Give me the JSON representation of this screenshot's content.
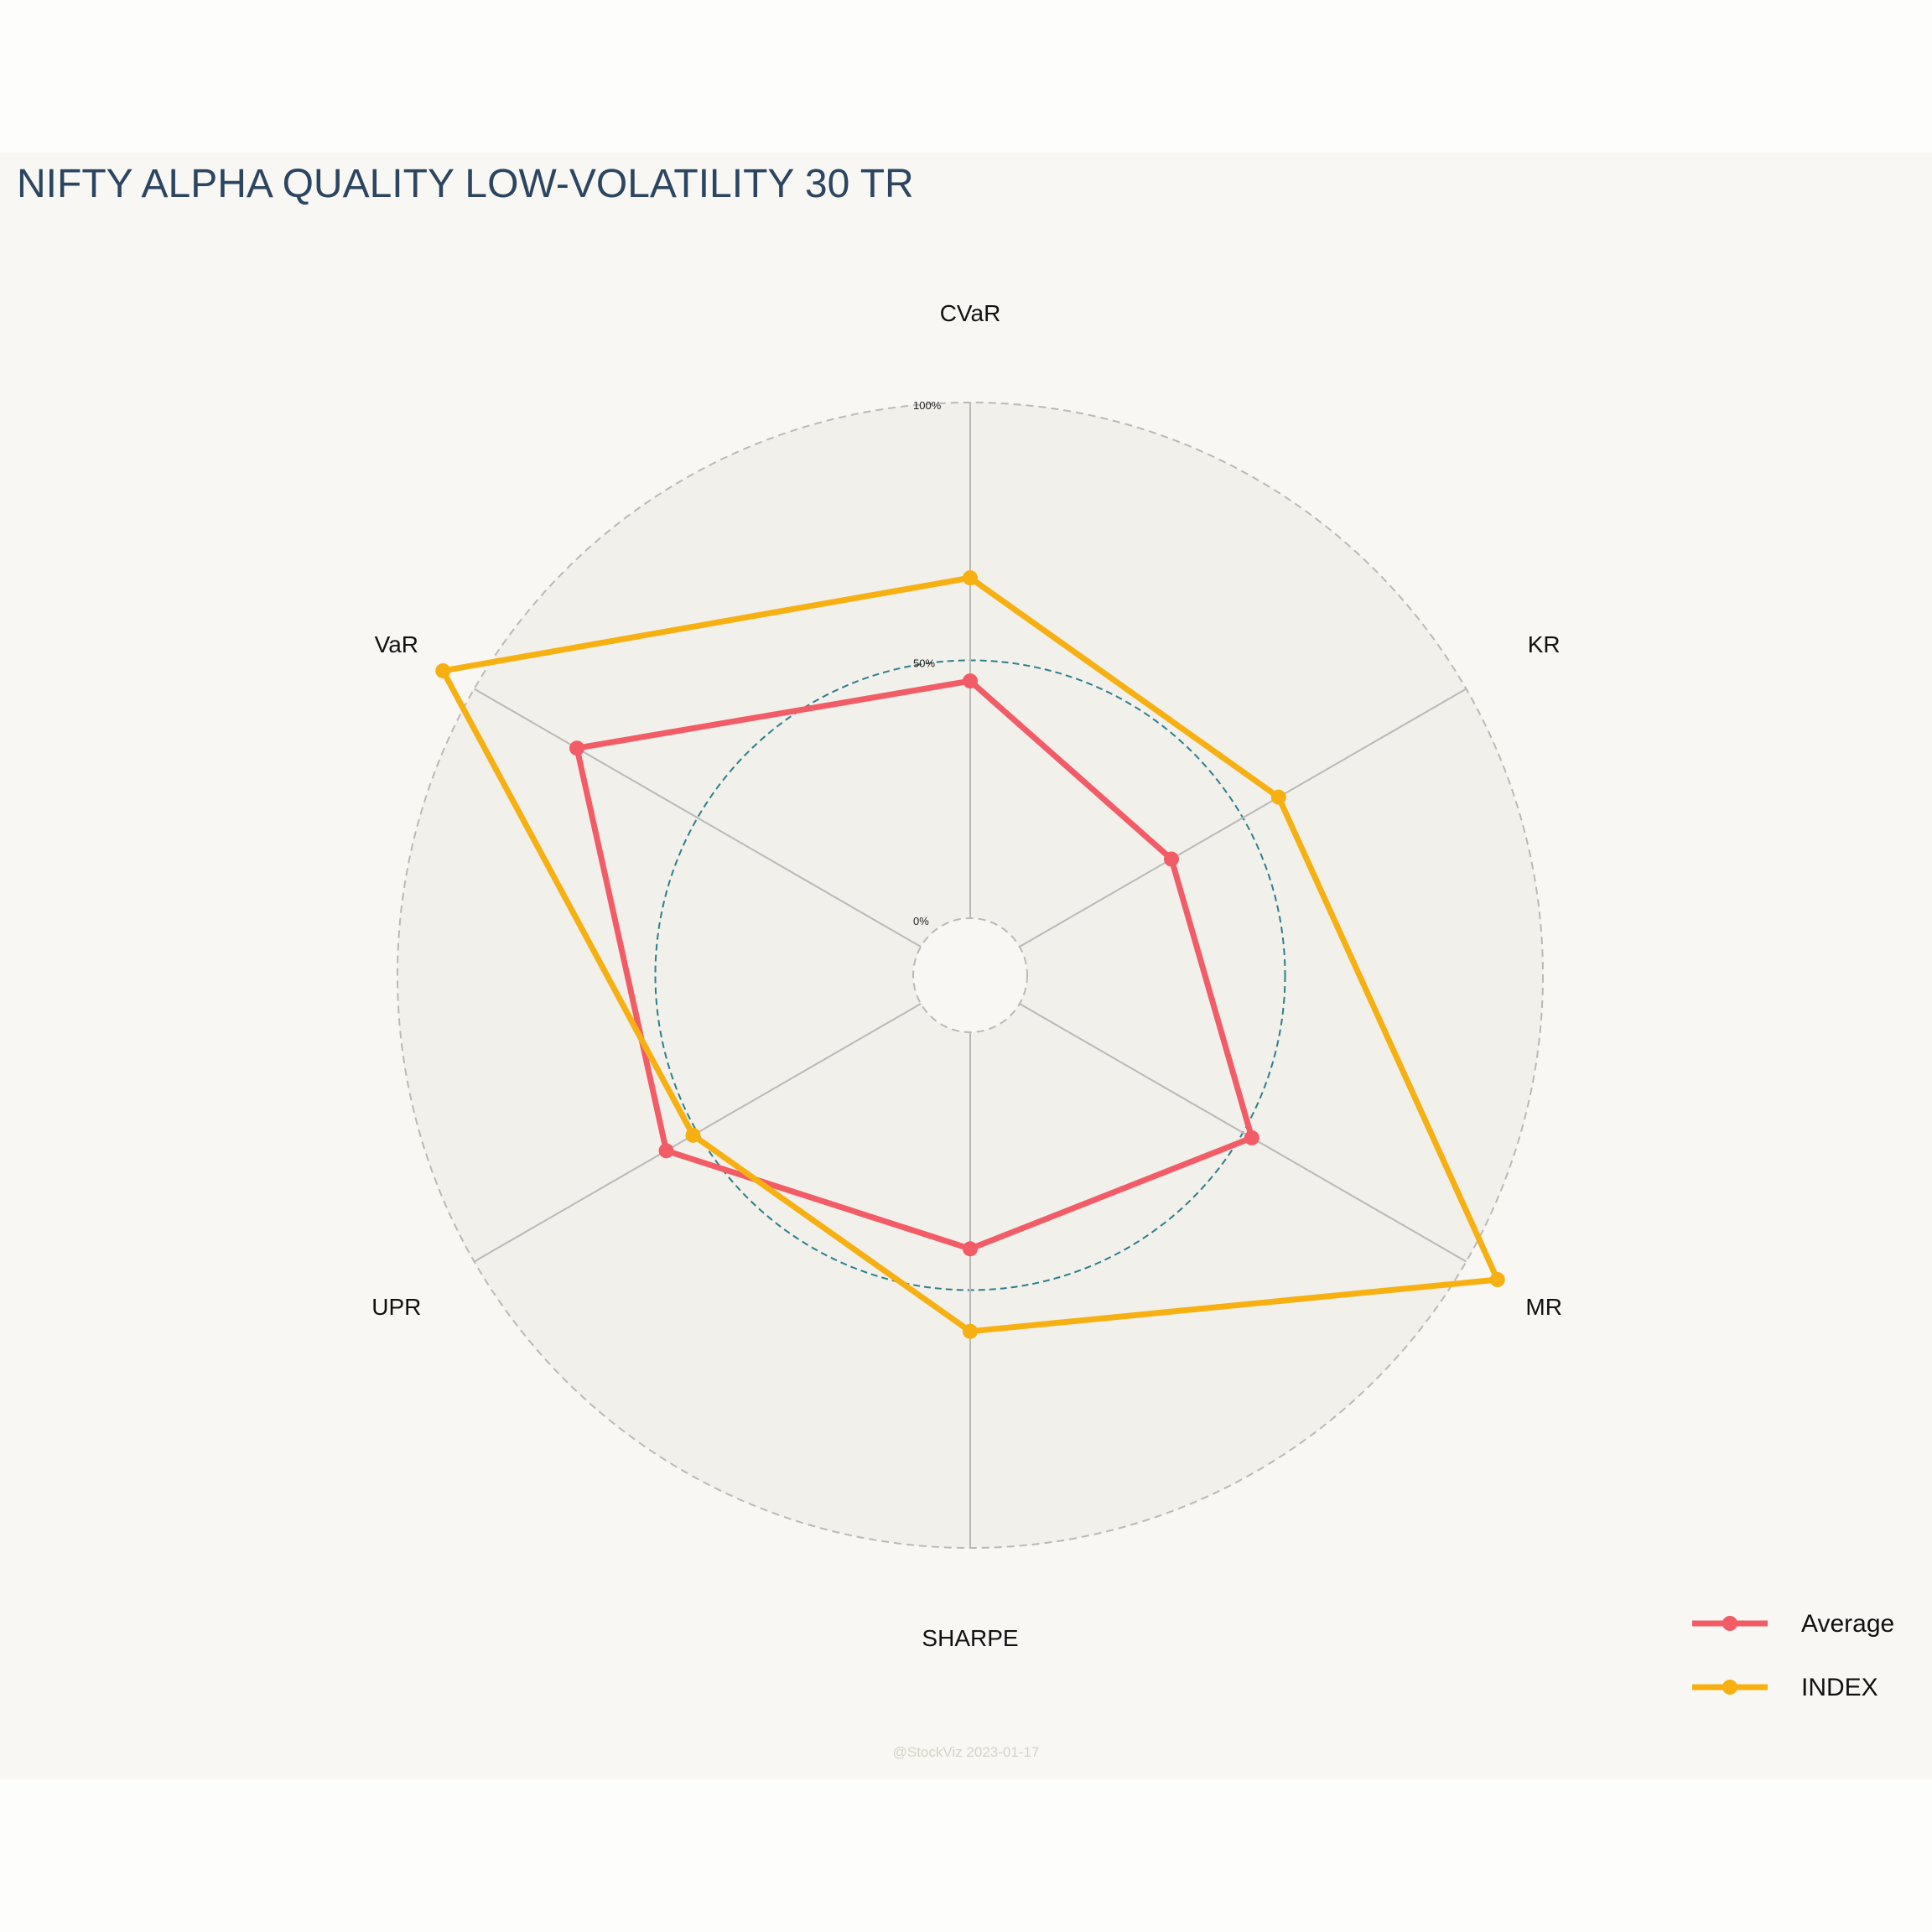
{
  "chart_data": {
    "type": "radar",
    "title": "NIFTY ALPHA QUALITY LOW-VOLATILITY 30 TR",
    "axes": [
      "CVaR",
      "KR",
      "MR",
      "SHARPE",
      "UPR",
      "VaR"
    ],
    "radial_ticks": [
      "0%",
      "50%",
      "100%"
    ],
    "rlim": [
      0,
      100
    ],
    "series": [
      {
        "name": "Average",
        "color": "#f25c66",
        "values": [
          46,
          34,
          52,
          42,
          57,
          77
        ]
      },
      {
        "name": "INDEX",
        "color": "#f6b012",
        "values": [
          66,
          58,
          107,
          58,
          51,
          107
        ]
      }
    ],
    "legend_position": "bottom-right"
  },
  "credit": "@StockViz 2023-01-17"
}
